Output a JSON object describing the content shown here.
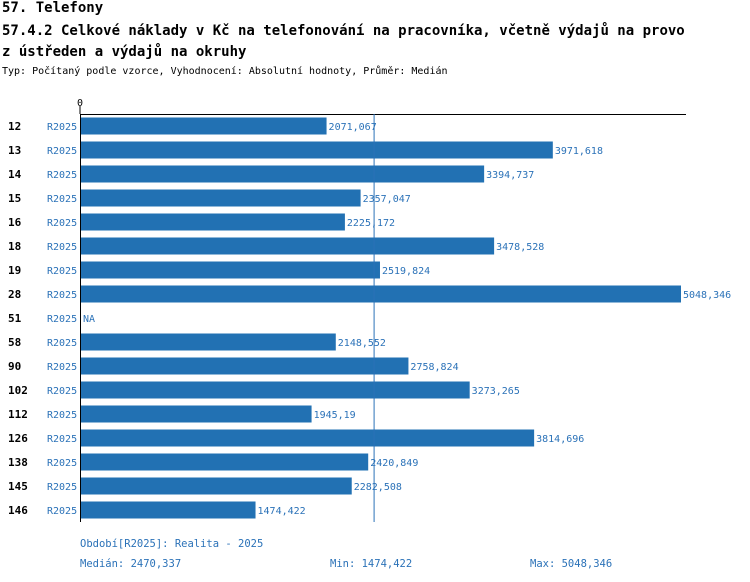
{
  "header": {
    "title": "57. Telefony",
    "subtitle_line1": "57.4.2 Celkové náklady v Kč na telefonování na pracovníka, včetně výdajů na provo",
    "subtitle_line2": "z ústředen a výdajů na okruhy",
    "type_line": "Typ: Počítaný podle vzorce, Vyhodnocení: Absolutní hodnoty, Průměr: Medián"
  },
  "chart_data": {
    "type": "bar",
    "orientation": "horizontal",
    "axis_zero_label": "0",
    "series_label": "R2025",
    "xlim": [
      0,
      5048.346
    ],
    "median": 2470.337,
    "rows": [
      {
        "id": "12",
        "series": "R2025",
        "value": 2071.067,
        "label": "2071,067"
      },
      {
        "id": "13",
        "series": "R2025",
        "value": 3971.618,
        "label": "3971,618"
      },
      {
        "id": "14",
        "series": "R2025",
        "value": 3394.737,
        "label": "3394,737"
      },
      {
        "id": "15",
        "series": "R2025",
        "value": 2357.047,
        "label": "2357,047"
      },
      {
        "id": "16",
        "series": "R2025",
        "value": 2225.172,
        "label": "2225,172"
      },
      {
        "id": "18",
        "series": "R2025",
        "value": 3478.528,
        "label": "3478,528"
      },
      {
        "id": "19",
        "series": "R2025",
        "value": 2519.824,
        "label": "2519,824"
      },
      {
        "id": "28",
        "series": "R2025",
        "value": 5048.346,
        "label": "5048,346"
      },
      {
        "id": "51",
        "series": "R2025",
        "value": null,
        "label": "NA"
      },
      {
        "id": "58",
        "series": "R2025",
        "value": 2148.552,
        "label": "2148,552"
      },
      {
        "id": "90",
        "series": "R2025",
        "value": 2758.824,
        "label": "2758,824"
      },
      {
        "id": "102",
        "series": "R2025",
        "value": 3273.265,
        "label": "3273,265"
      },
      {
        "id": "112",
        "series": "R2025",
        "value": 1945.19,
        "label": "1945,19"
      },
      {
        "id": "126",
        "series": "R2025",
        "value": 3814.696,
        "label": "3814,696"
      },
      {
        "id": "138",
        "series": "R2025",
        "value": 2420.849,
        "label": "2420,849"
      },
      {
        "id": "145",
        "series": "R2025",
        "value": 2282.508,
        "label": "2282,508"
      },
      {
        "id": "146",
        "series": "R2025",
        "value": 1474.422,
        "label": "1474,422"
      }
    ]
  },
  "footer": {
    "period": "Období[R2025]: Realita - 2025",
    "median": "Medián: 2470,337",
    "min": "Min: 1474,422",
    "max": "Max: 5048,346"
  },
  "colors": {
    "bar": "#2271b3",
    "label": "#2b72b8",
    "axis": "#000000"
  }
}
